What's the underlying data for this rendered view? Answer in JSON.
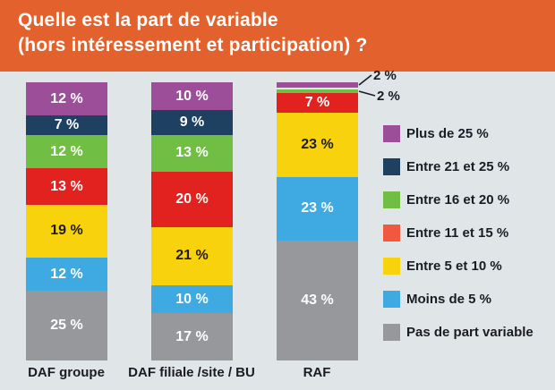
{
  "header": {
    "title_line1": "Quelle est la part de variable",
    "title_line2": "(hors intéressement et participation) ?"
  },
  "colors": {
    "header_bg": "#e2612c",
    "page_bg": "#e0e5e8",
    "text_dark": "#1b1b26"
  },
  "chart_data": {
    "type": "bar",
    "subtype": "stacked-vertical",
    "title": "Quelle est la part de variable (hors intéressement et participation) ?",
    "categories": [
      "DAF groupe",
      "DAF filiale /site / BU",
      "RAF"
    ],
    "value_suffix": " %",
    "ylim": [
      0,
      100
    ],
    "grid": false,
    "legend_position": "right",
    "series": [
      {
        "name": "Plus de 25 %",
        "color": "#9c4e98",
        "values": [
          12,
          10,
          2
        ]
      },
      {
        "name": "Entre 21 et 25 %",
        "color": "#1e4161",
        "values": [
          7,
          9,
          0
        ]
      },
      {
        "name": "Entre 16 et 20 %",
        "color": "#70be44",
        "values": [
          12,
          13,
          2
        ]
      },
      {
        "name": "Entre 11 et 15 %",
        "color": "#e1221f",
        "legend_color": "#f0593f",
        "values": [
          13,
          20,
          7
        ]
      },
      {
        "name": "Entre 5 et 10 %",
        "color": "#f9d20e",
        "label_color": "#1b1b26",
        "values": [
          19,
          21,
          23
        ]
      },
      {
        "name": "Moins de 5 %",
        "color": "#3fa9e1",
        "values": [
          12,
          10,
          23
        ]
      },
      {
        "name": "Pas de part variable",
        "color": "#97989b",
        "values": [
          25,
          17,
          43
        ]
      }
    ],
    "callouts": {
      "labels": [
        "2 %",
        "2 %"
      ],
      "note": "labels for the two thin top slices of the RAF bar"
    }
  }
}
